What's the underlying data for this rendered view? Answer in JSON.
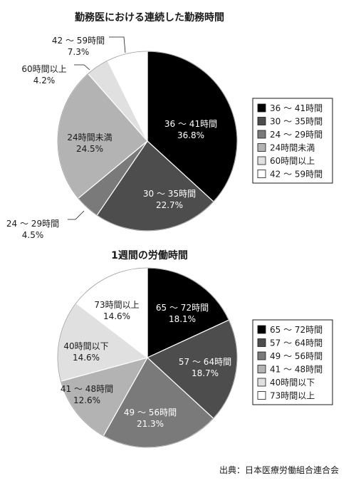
{
  "source": "出典：日本医療労働組合連合会",
  "chart_data": [
    {
      "type": "pie",
      "title": "勤務医における連続した勤務時間",
      "legend_position": "right",
      "slices": [
        {
          "label": "36 ～ 41時間",
          "value": 36.8,
          "value_label": "36.8%",
          "color": "#000000"
        },
        {
          "label": "30 ～ 35時間",
          "value": 22.7,
          "value_label": "22.7%",
          "color": "#4d4d4d"
        },
        {
          "label": "24 ～ 29時間",
          "value": 4.5,
          "value_label": "4.5%",
          "color": "#7a7a7a"
        },
        {
          "label": "24時間未満",
          "value": 24.5,
          "value_label": "24.5%",
          "color": "#b3b3b3"
        },
        {
          "label": "60時間以上",
          "value": 4.2,
          "value_label": "4.2%",
          "color": "#e0e0e0"
        },
        {
          "label": "42 ～ 59時間",
          "value": 7.3,
          "value_label": "7.3%",
          "color": "#ffffff"
        }
      ]
    },
    {
      "type": "pie",
      "title": "1週間の労働時間",
      "legend_position": "right",
      "slices": [
        {
          "label": "65 ～ 72時間",
          "value": 18.1,
          "value_label": "18.1%",
          "color": "#000000"
        },
        {
          "label": "57 ～ 64時間",
          "value": 18.7,
          "value_label": "18.7%",
          "color": "#4d4d4d"
        },
        {
          "label": "49 ～ 56時間",
          "value": 21.3,
          "value_label": "21.3%",
          "color": "#7a7a7a"
        },
        {
          "label": "41 ～ 48時間",
          "value": 12.6,
          "value_label": "12.6%",
          "color": "#b3b3b3"
        },
        {
          "label": "40時間以下",
          "value": 14.6,
          "value_label": "14.6%",
          "color": "#e0e0e0"
        },
        {
          "label": "73時間以上",
          "value": 14.6,
          "value_label": "14.6%",
          "color": "#ffffff"
        }
      ]
    }
  ]
}
